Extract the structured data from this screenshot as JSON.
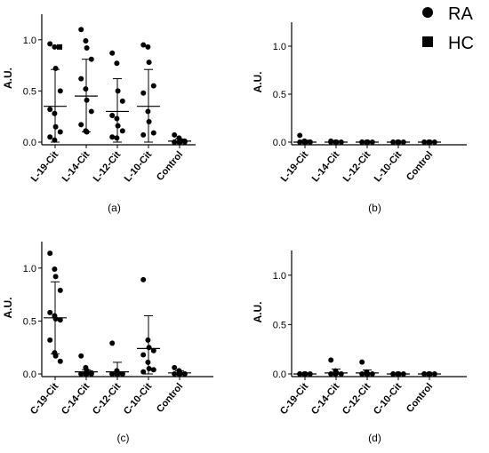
{
  "legend": {
    "placement": "top-right",
    "items": [
      {
        "label": "RA",
        "marker": "circle"
      },
      {
        "label": "HC",
        "marker": "square"
      }
    ]
  },
  "colors": {
    "marker": "#000000",
    "axis": "#000000"
  },
  "chart_data": [
    {
      "type": "scatter",
      "panel_label": "(a)",
      "ylabel": "A.U.",
      "ylim": [
        0,
        1.25
      ],
      "yticks": [
        "0.0",
        "0.5",
        "1.0"
      ],
      "categories": [
        "L-19-Cit",
        "L-14-Cit",
        "L-12-Cit",
        "L-10-Cit",
        "Control"
      ],
      "mean": [
        0.35,
        0.45,
        0.3,
        0.35,
        0.01
      ],
      "sd_upper": [
        0.71,
        0.81,
        0.62,
        0.71,
        0.03
      ],
      "sd_lower": [
        0.0,
        0.1,
        0.0,
        0.0,
        0.0
      ],
      "points": [
        [
          0.96,
          0.93,
          0.72,
          0.5,
          0.32,
          0.28,
          0.15,
          0.1,
          0.05,
          0.02
        ],
        [
          1.1,
          0.99,
          0.92,
          0.81,
          0.62,
          0.52,
          0.41,
          0.3,
          0.17,
          0.11,
          0.1
        ],
        [
          0.87,
          0.77,
          0.5,
          0.4,
          0.26,
          0.23,
          0.16,
          0.11,
          0.05,
          0.04
        ],
        [
          0.95,
          0.93,
          0.78,
          0.55,
          0.48,
          0.3,
          0.2,
          0.09,
          0.07
        ],
        [
          0.07,
          0.04,
          0.02,
          0.01,
          0.0,
          0.0,
          0.0,
          0.0,
          0.0
        ]
      ],
      "hc_points": [
        [
          0.93
        ],
        [],
        [],
        [],
        []
      ]
    },
    {
      "type": "scatter",
      "panel_label": "(b)",
      "ylabel": "A.U.",
      "ylim": [
        0,
        1.25
      ],
      "yticks": [
        "0.0",
        "0.5",
        "1.0"
      ],
      "categories": [
        "L-19-Cit",
        "L-14-Cit",
        "L-12-Cit",
        "L-10-Cit",
        "Control"
      ],
      "mean": [
        0.0,
        0.0,
        0.0,
        0.0,
        0.0
      ],
      "sd_upper": [
        0.02,
        0.01,
        0.0,
        0.0,
        0.0
      ],
      "sd_lower": [
        0.0,
        0.0,
        0.0,
        0.0,
        0.0
      ],
      "points": [
        [
          0.07,
          0.01,
          0.0,
          0.0,
          0.0,
          0.0,
          0.0,
          0.0
        ],
        [
          0.01,
          0.0,
          0.0,
          0.0,
          0.0,
          0.0
        ],
        [
          0.0,
          0.0,
          0.0,
          0.0,
          0.0,
          0.0
        ],
        [
          0.0,
          0.0,
          0.0,
          0.0,
          0.0,
          0.0
        ],
        [
          0.0,
          0.0,
          0.0,
          0.0,
          0.0,
          0.0
        ]
      ],
      "hc_points": [
        [],
        [],
        [],
        [],
        []
      ]
    },
    {
      "type": "scatter",
      "panel_label": "(c)",
      "ylabel": "A.U.",
      "ylim": [
        0,
        1.25
      ],
      "yticks": [
        "0.0",
        "0.5",
        "1.0"
      ],
      "categories": [
        "C-19-Cit",
        "C-14-Cit",
        "C-12-Cit",
        "C-10-Cit",
        "Control"
      ],
      "mean": [
        0.53,
        0.02,
        0.02,
        0.24,
        0.01
      ],
      "sd_upper": [
        0.87,
        0.04,
        0.11,
        0.55,
        0.03
      ],
      "sd_lower": [
        0.19,
        0.0,
        0.0,
        0.0,
        0.0
      ],
      "points": [
        [
          1.14,
          0.99,
          0.92,
          0.79,
          0.58,
          0.55,
          0.52,
          0.51,
          0.32,
          0.2,
          0.17,
          0.12
        ],
        [
          0.17,
          0.06,
          0.03,
          0.01,
          0.0,
          0.0,
          0.0,
          0.0,
          0.0
        ],
        [
          0.29,
          0.03,
          0.01,
          0.0,
          0.0,
          0.0,
          0.0,
          0.0,
          0.0
        ],
        [
          0.89,
          0.32,
          0.25,
          0.22,
          0.18,
          0.11,
          0.05,
          0.04,
          0.02
        ],
        [
          0.06,
          0.03,
          0.01,
          0.0,
          0.0,
          0.0,
          0.0,
          0.0
        ]
      ],
      "hc_points": [
        [],
        [],
        [],
        [],
        []
      ]
    },
    {
      "type": "scatter",
      "panel_label": "(d)",
      "ylabel": "A.U.",
      "ylim": [
        0,
        1.25
      ],
      "yticks": [
        "0.0",
        "0.5",
        "1.0"
      ],
      "categories": [
        "C-19-Cit",
        "C-14-Cit",
        "C-12-Cit",
        "C-10-Cit",
        "Control"
      ],
      "mean": [
        0.0,
        0.01,
        0.01,
        0.0,
        0.0
      ],
      "sd_upper": [
        0.0,
        0.05,
        0.04,
        0.0,
        0.0
      ],
      "sd_lower": [
        0.0,
        0.0,
        0.0,
        0.0,
        0.0
      ],
      "points": [
        [
          0.0,
          0.0,
          0.0,
          0.0,
          0.0,
          0.0
        ],
        [
          0.14,
          0.03,
          0.01,
          0.0,
          0.0,
          0.0
        ],
        [
          0.12,
          0.02,
          0.0,
          0.0,
          0.0,
          0.0
        ],
        [
          0.0,
          0.0,
          0.0,
          0.0,
          0.0,
          0.0
        ],
        [
          0.0,
          0.0,
          0.0,
          0.0,
          0.0,
          0.0
        ]
      ],
      "hc_points": [
        [],
        [],
        [],
        [],
        []
      ]
    }
  ]
}
